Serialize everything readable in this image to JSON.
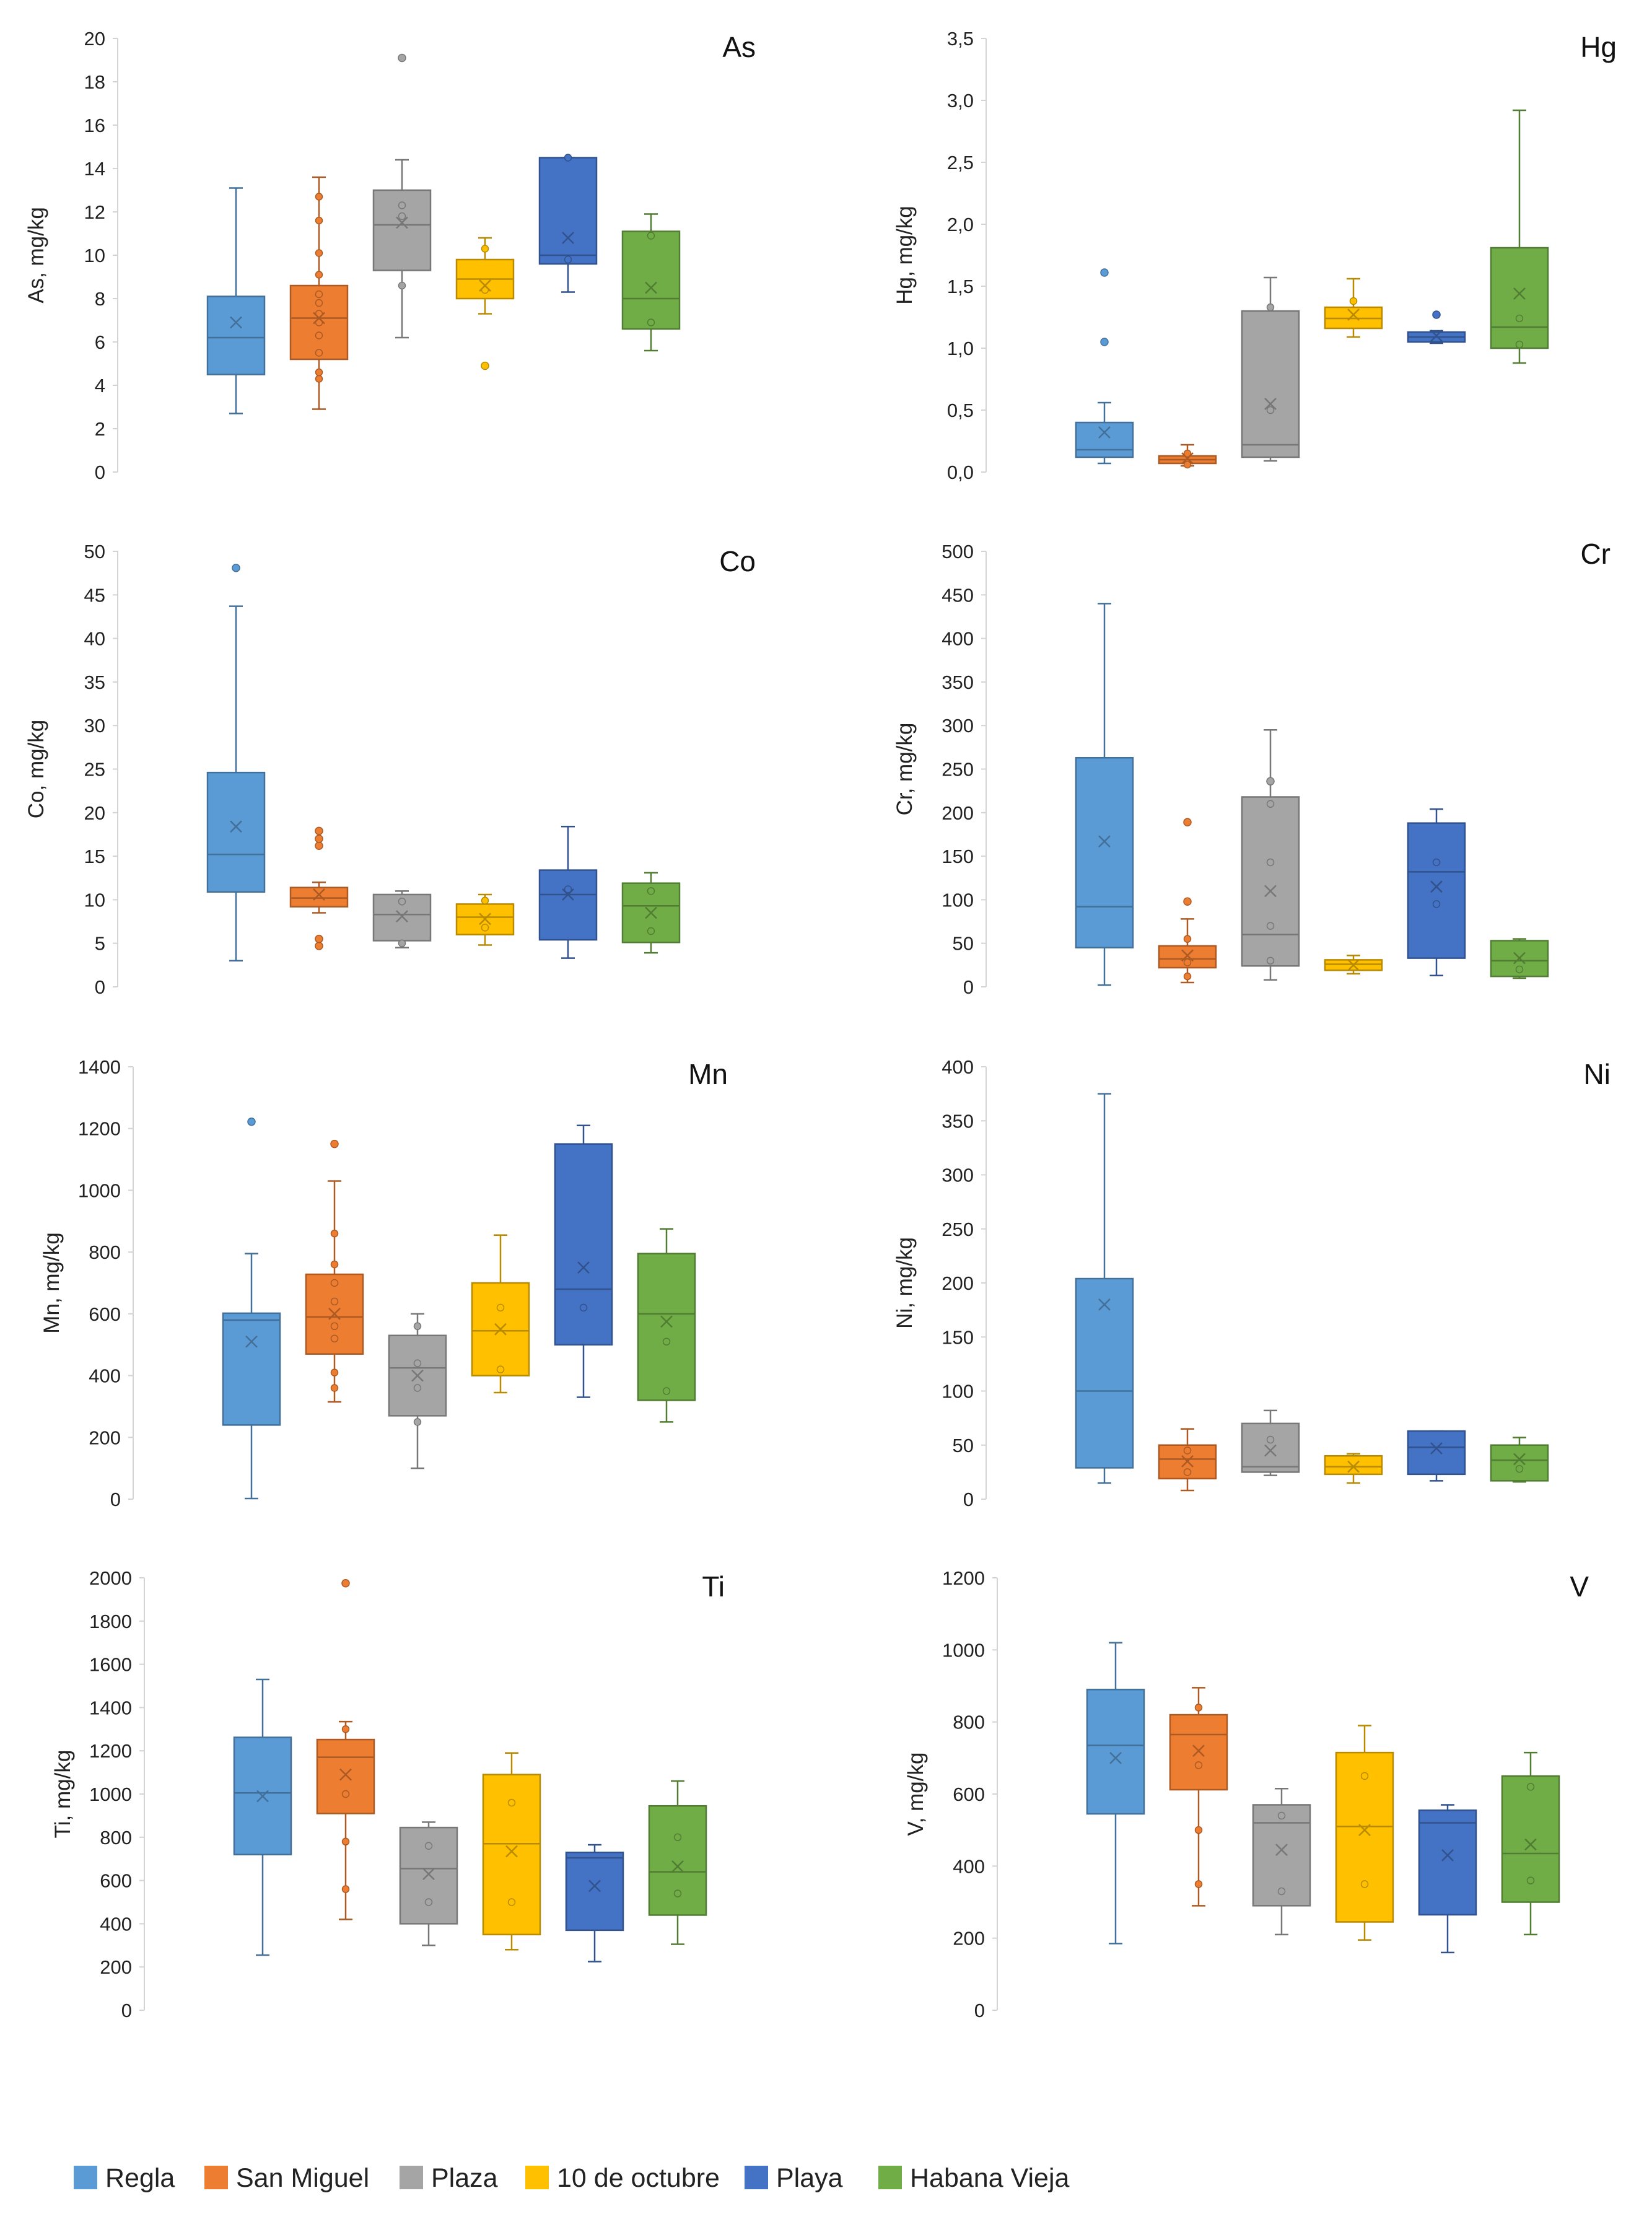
{
  "legend": {
    "series": [
      {
        "name": "Regla",
        "color": "#5B9BD5"
      },
      {
        "name": "San Miguel",
        "color": "#ED7D31"
      },
      {
        "name": "Plaza",
        "color": "#A5A5A5"
      },
      {
        "name": "10 de octubre",
        "color": "#FFC000"
      },
      {
        "name": "Playa",
        "color": "#4472C4"
      },
      {
        "name": "Habana Vieja",
        "color": "#70AD47"
      }
    ]
  },
  "chart_data": [
    {
      "type": "box",
      "title": "As",
      "ylabel": "As, mg/kg",
      "ylim": [
        0,
        20
      ],
      "step": 2,
      "decimal_comma": false,
      "boxes": [
        {
          "min": 2.7,
          "q1": 4.5,
          "median": 6.2,
          "q3": 8.1,
          "max": 13.1,
          "mean": 6.9,
          "points": [],
          "outliers": []
        },
        {
          "min": 2.9,
          "q1": 5.2,
          "median": 7.1,
          "q3": 8.6,
          "max": 13.6,
          "mean": 7.1,
          "points": [
            4.3,
            4.6,
            5.5,
            6.3,
            6.9,
            7.3,
            7.8,
            8.2,
            9.1,
            10.1,
            11.6,
            12.7
          ],
          "outliers": []
        },
        {
          "min": 6.2,
          "q1": 9.3,
          "median": 11.4,
          "q3": 13.0,
          "max": 14.4,
          "mean": 11.5,
          "points": [
            8.6,
            11.8,
            12.3
          ],
          "outliers": [
            19.1
          ]
        },
        {
          "min": 7.3,
          "q1": 8.0,
          "median": 8.9,
          "q3": 9.8,
          "max": 10.8,
          "mean": 8.6,
          "points": [
            8.4,
            10.3
          ],
          "outliers": [
            4.9
          ]
        },
        {
          "min": 8.3,
          "q1": 9.6,
          "median": 10.0,
          "q3": 14.5,
          "max": 14.5,
          "mean": 10.8,
          "points": [
            9.8,
            14.5
          ],
          "outliers": []
        },
        {
          "min": 5.6,
          "q1": 6.6,
          "median": 8.0,
          "q3": 11.1,
          "max": 11.9,
          "mean": 8.5,
          "points": [
            6.9,
            10.9
          ],
          "outliers": []
        }
      ]
    },
    {
      "type": "box",
      "title": "Hg",
      "ylabel": "Hg, mg/kg",
      "ylim": [
        0,
        3.5
      ],
      "step": 0.5,
      "decimal_comma": true,
      "boxes": [
        {
          "min": 0.07,
          "q1": 0.12,
          "median": 0.18,
          "q3": 0.4,
          "max": 0.56,
          "mean": 0.32,
          "points": [],
          "outliers": [
            1.05,
            1.61
          ]
        },
        {
          "min": 0.05,
          "q1": 0.07,
          "median": 0.1,
          "q3": 0.13,
          "max": 0.22,
          "mean": 0.11,
          "points": [
            0.06,
            0.15
          ],
          "outliers": []
        },
        {
          "min": 0.09,
          "q1": 0.12,
          "median": 0.22,
          "q3": 1.3,
          "max": 1.57,
          "mean": 0.55,
          "points": [
            0.5,
            1.33
          ],
          "outliers": []
        },
        {
          "min": 1.09,
          "q1": 1.16,
          "median": 1.24,
          "q3": 1.33,
          "max": 1.56,
          "mean": 1.27,
          "points": [
            1.38
          ],
          "outliers": []
        },
        {
          "min": 1.04,
          "q1": 1.05,
          "median": 1.09,
          "q3": 1.13,
          "max": 1.14,
          "mean": 1.1,
          "points": [],
          "outliers": [
            1.27
          ]
        },
        {
          "min": 0.88,
          "q1": 1.0,
          "median": 1.17,
          "q3": 1.81,
          "max": 2.92,
          "mean": 1.44,
          "points": [
            1.03,
            1.24
          ],
          "outliers": []
        }
      ]
    },
    {
      "type": "box",
      "title": "Co",
      "ylabel": "Co, mg/kg",
      "ylim": [
        0,
        50
      ],
      "step": 5,
      "decimal_comma": false,
      "boxes": [
        {
          "min": 3.0,
          "q1": 10.9,
          "median": 15.2,
          "q3": 24.6,
          "max": 43.7,
          "mean": 18.4,
          "points": [],
          "outliers": [
            48.1
          ]
        },
        {
          "min": 8.5,
          "q1": 9.2,
          "median": 10.2,
          "q3": 11.4,
          "max": 12.0,
          "mean": 10.6,
          "points": [],
          "outliers": [
            4.7,
            5.5,
            16.2,
            17.0,
            17.9
          ]
        },
        {
          "min": 4.5,
          "q1": 5.3,
          "median": 8.3,
          "q3": 10.6,
          "max": 11.0,
          "mean": 8.1,
          "points": [
            5.0,
            9.8
          ],
          "outliers": []
        },
        {
          "min": 4.8,
          "q1": 6.0,
          "median": 8.0,
          "q3": 9.5,
          "max": 10.6,
          "mean": 7.8,
          "points": [
            6.8,
            9.9
          ],
          "outliers": []
        },
        {
          "min": 3.3,
          "q1": 5.4,
          "median": 10.6,
          "q3": 13.4,
          "max": 18.4,
          "mean": 10.6,
          "points": [
            11.2
          ],
          "outliers": []
        },
        {
          "min": 3.9,
          "q1": 5.1,
          "median": 9.3,
          "q3": 11.9,
          "max": 13.1,
          "mean": 8.5,
          "points": [
            6.4,
            11.0
          ],
          "outliers": []
        }
      ]
    },
    {
      "type": "box",
      "title": "Cr",
      "ylabel": "Cr, mg/kg",
      "ylim": [
        0,
        500
      ],
      "step": 50,
      "decimal_comma": false,
      "boxes": [
        {
          "min": 2,
          "q1": 45,
          "median": 92,
          "q3": 263,
          "max": 440,
          "mean": 167,
          "points": [],
          "outliers": []
        },
        {
          "min": 5,
          "q1": 22,
          "median": 32,
          "q3": 47,
          "max": 78,
          "mean": 36,
          "points": [
            12,
            28,
            55
          ],
          "outliers": [
            98,
            189
          ]
        },
        {
          "min": 8,
          "q1": 24,
          "median": 60,
          "q3": 218,
          "max": 295,
          "mean": 110,
          "points": [
            30,
            70,
            143,
            210
          ],
          "outliers": [
            236
          ]
        },
        {
          "min": 15,
          "q1": 19,
          "median": 26,
          "q3": 31,
          "max": 36,
          "mean": 25,
          "points": [],
          "outliers": []
        },
        {
          "min": 13,
          "q1": 33,
          "median": 132,
          "q3": 188,
          "max": 204,
          "mean": 115,
          "points": [
            95,
            143
          ],
          "outliers": []
        },
        {
          "min": 10,
          "q1": 12,
          "median": 30,
          "q3": 53,
          "max": 55,
          "mean": 33,
          "points": [
            20
          ],
          "outliers": []
        }
      ]
    },
    {
      "type": "box",
      "title": "Mn",
      "ylabel": "Mn, mg/kg",
      "ylim": [
        0,
        1400
      ],
      "step": 200,
      "decimal_comma": false,
      "boxes": [
        {
          "min": 2,
          "q1": 240,
          "median": 580,
          "q3": 602,
          "max": 795,
          "mean": 510,
          "points": [],
          "outliers": [
            1222
          ]
        },
        {
          "min": 315,
          "q1": 470,
          "median": 590,
          "q3": 728,
          "max": 1030,
          "mean": 600,
          "points": [
            360,
            410,
            520,
            560,
            640,
            700,
            760,
            860
          ],
          "outliers": [
            1150
          ]
        },
        {
          "min": 100,
          "q1": 270,
          "median": 425,
          "q3": 530,
          "max": 600,
          "mean": 400,
          "points": [
            250,
            360,
            440,
            560
          ],
          "outliers": []
        },
        {
          "min": 345,
          "q1": 400,
          "median": 545,
          "q3": 700,
          "max": 855,
          "mean": 550,
          "points": [
            420,
            620
          ],
          "outliers": []
        },
        {
          "min": 330,
          "q1": 500,
          "median": 680,
          "q3": 1150,
          "max": 1210,
          "mean": 750,
          "points": [
            620
          ],
          "outliers": []
        },
        {
          "min": 250,
          "q1": 320,
          "median": 600,
          "q3": 795,
          "max": 875,
          "mean": 575,
          "points": [
            350,
            510
          ],
          "outliers": []
        }
      ]
    },
    {
      "type": "box",
      "title": "Ni",
      "ylabel": "Ni, mg/kg",
      "ylim": [
        0,
        400
      ],
      "step": 50,
      "decimal_comma": false,
      "boxes": [
        {
          "min": 15,
          "q1": 29,
          "median": 100,
          "q3": 204,
          "max": 375,
          "mean": 180,
          "points": [],
          "outliers": []
        },
        {
          "min": 8,
          "q1": 19,
          "median": 37,
          "q3": 50,
          "max": 65,
          "mean": 35,
          "points": [
            25,
            45
          ],
          "outliers": []
        },
        {
          "min": 22,
          "q1": 25,
          "median": 30,
          "q3": 70,
          "max": 82,
          "mean": 45,
          "points": [
            55
          ],
          "outliers": []
        },
        {
          "min": 15,
          "q1": 23,
          "median": 30,
          "q3": 40,
          "max": 42,
          "mean": 30,
          "points": [],
          "outliers": []
        },
        {
          "min": 17,
          "q1": 23,
          "median": 48,
          "q3": 63,
          "max": 63,
          "mean": 47,
          "points": [],
          "outliers": []
        },
        {
          "min": 16,
          "q1": 17,
          "median": 36,
          "q3": 50,
          "max": 57,
          "mean": 37,
          "points": [
            28
          ],
          "outliers": []
        }
      ]
    },
    {
      "type": "box",
      "title": "Ti",
      "ylabel": "Ti, mg/kg",
      "ylim": [
        0,
        2000
      ],
      "step": 200,
      "decimal_comma": false,
      "boxes": [
        {
          "min": 255,
          "q1": 720,
          "median": 1005,
          "q3": 1262,
          "max": 1530,
          "mean": 990,
          "points": [],
          "outliers": []
        },
        {
          "min": 420,
          "q1": 910,
          "median": 1170,
          "q3": 1252,
          "max": 1335,
          "mean": 1090,
          "points": [
            560,
            780,
            1000,
            1300
          ],
          "outliers": [
            1975
          ]
        },
        {
          "min": 300,
          "q1": 400,
          "median": 655,
          "q3": 845,
          "max": 870,
          "mean": 630,
          "points": [
            500,
            760
          ],
          "outliers": []
        },
        {
          "min": 280,
          "q1": 350,
          "median": 770,
          "q3": 1090,
          "max": 1190,
          "mean": 735,
          "points": [
            500,
            960
          ],
          "outliers": []
        },
        {
          "min": 225,
          "q1": 370,
          "median": 705,
          "q3": 730,
          "max": 765,
          "mean": 575,
          "points": [],
          "outliers": []
        },
        {
          "min": 305,
          "q1": 440,
          "median": 640,
          "q3": 945,
          "max": 1060,
          "mean": 665,
          "points": [
            540,
            800
          ],
          "outliers": []
        }
      ]
    },
    {
      "type": "box",
      "title": "V",
      "ylabel": "V, mg/kg",
      "ylim": [
        0,
        1200
      ],
      "step": 200,
      "decimal_comma": false,
      "boxes": [
        {
          "min": 185,
          "q1": 545,
          "median": 735,
          "q3": 890,
          "max": 1020,
          "mean": 700,
          "points": [],
          "outliers": []
        },
        {
          "min": 290,
          "q1": 612,
          "median": 765,
          "q3": 820,
          "max": 895,
          "mean": 720,
          "points": [
            350,
            500,
            680,
            840
          ],
          "outliers": []
        },
        {
          "min": 210,
          "q1": 290,
          "median": 520,
          "q3": 570,
          "max": 615,
          "mean": 445,
          "points": [
            330,
            540
          ],
          "outliers": []
        },
        {
          "min": 195,
          "q1": 245,
          "median": 510,
          "q3": 715,
          "max": 790,
          "mean": 500,
          "points": [
            350,
            650
          ],
          "outliers": []
        },
        {
          "min": 160,
          "q1": 265,
          "median": 520,
          "q3": 555,
          "max": 570,
          "mean": 430,
          "points": [],
          "outliers": []
        },
        {
          "min": 210,
          "q1": 300,
          "median": 435,
          "q3": 650,
          "max": 715,
          "mean": 460,
          "points": [
            360,
            620
          ],
          "outliers": []
        }
      ]
    }
  ]
}
